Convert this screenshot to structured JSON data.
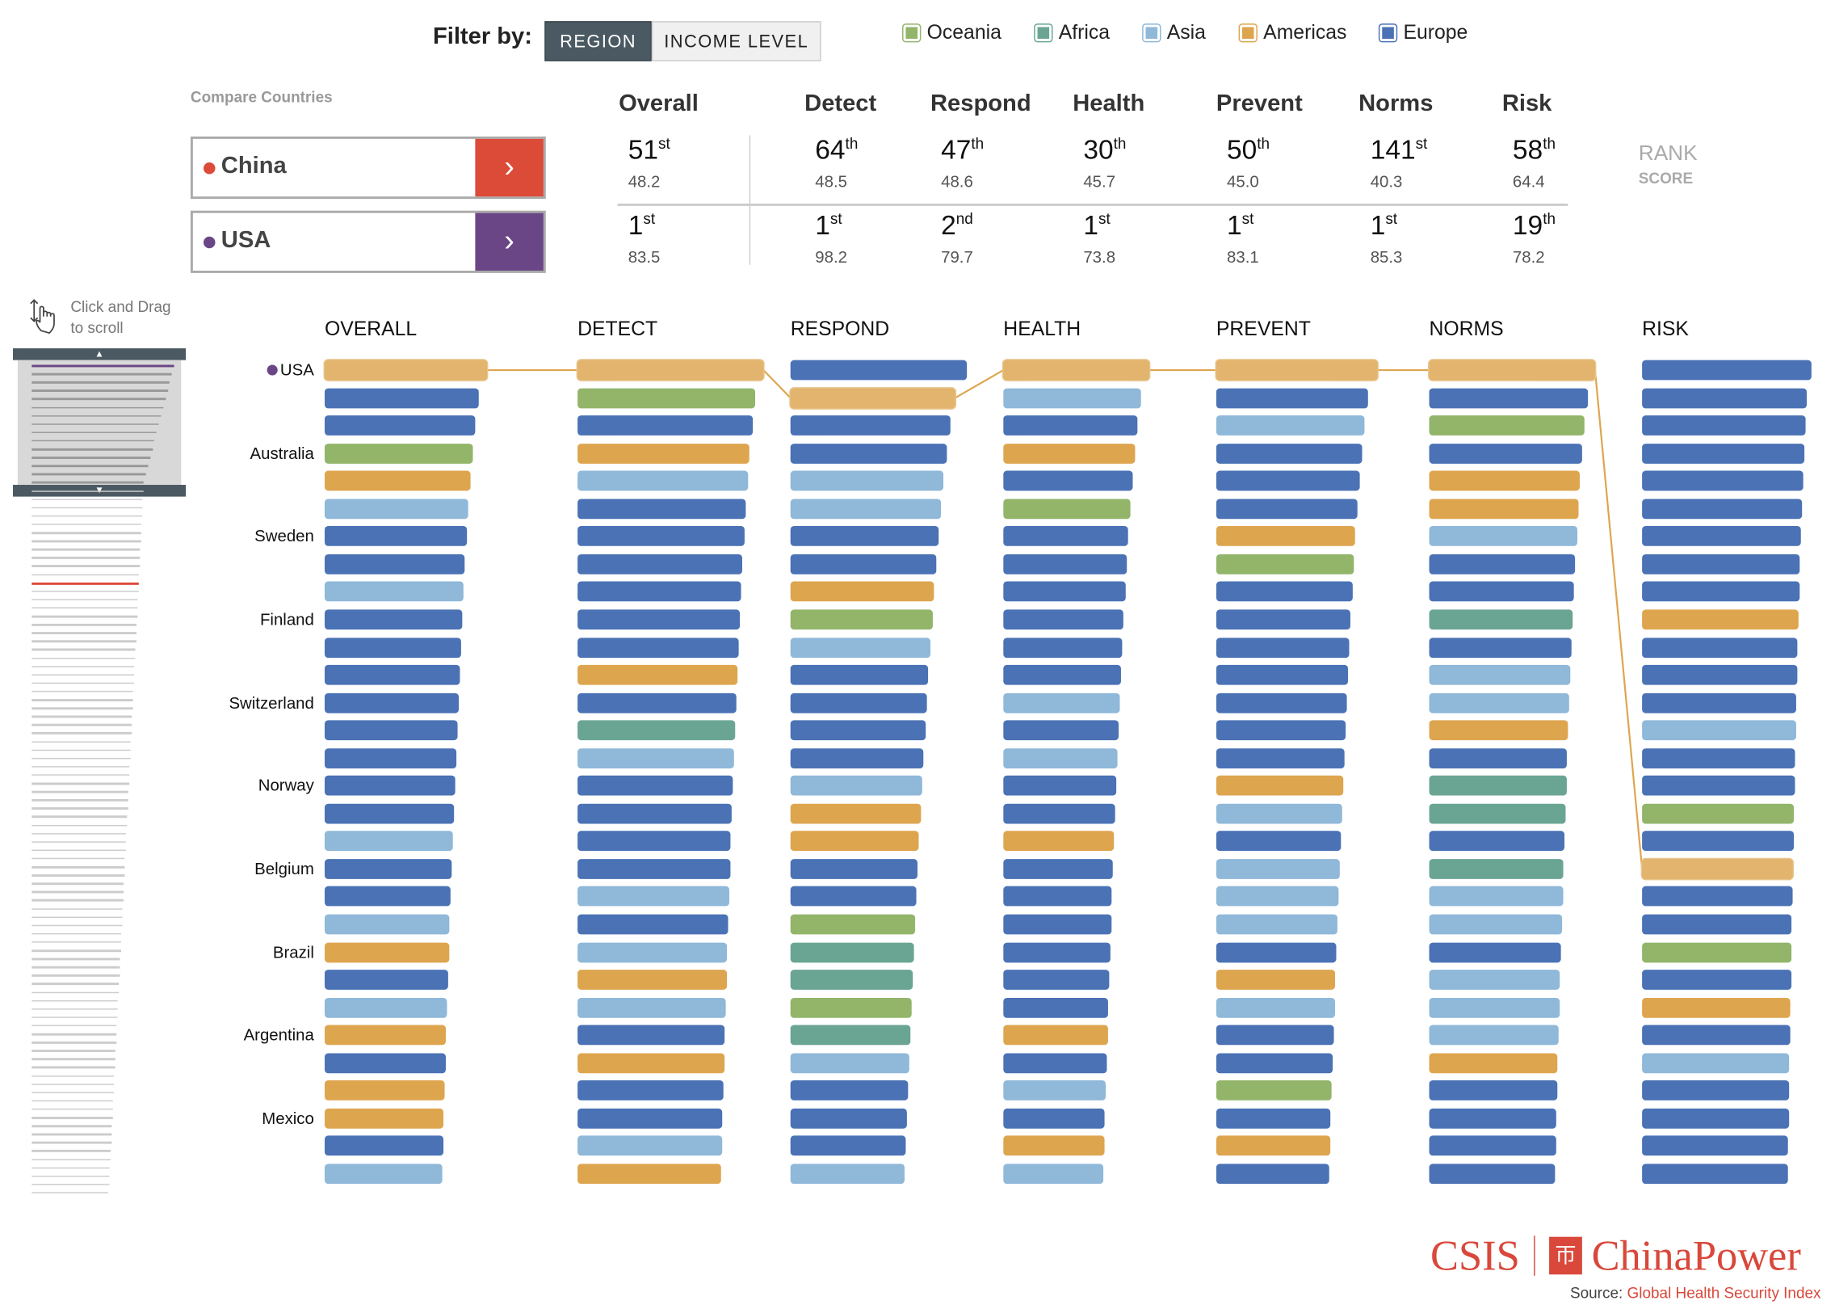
{
  "filter": {
    "label": "Filter by:",
    "options": [
      "REGION",
      "INCOME LEVEL"
    ],
    "selected": "REGION"
  },
  "legend": [
    {
      "name": "Oceania",
      "color": "#92b56a"
    },
    {
      "name": "Africa",
      "color": "#6aa594"
    },
    {
      "name": "Asia",
      "color": "#8fb8d9"
    },
    {
      "name": "Americas",
      "color": "#dea54f"
    },
    {
      "name": "Europe",
      "color": "#4a72b5"
    }
  ],
  "region_colors": {
    "O": "#92b56a",
    "F": "#6aa594",
    "S": "#8fb8d9",
    "A": "#dea54f",
    "E": "#4a72b5",
    "H": "#e2b46e"
  },
  "compare": {
    "title": "Compare Countries",
    "countries": [
      {
        "name": "China",
        "color": "#dc4a38",
        "arrow": "›",
        "ranks": [
          [
            "51",
            "st"
          ],
          [
            "64",
            "th"
          ],
          [
            "47",
            "th"
          ],
          [
            "30",
            "th"
          ],
          [
            "50",
            "th"
          ],
          [
            "141",
            "st"
          ],
          [
            "58",
            "th"
          ]
        ],
        "scores": [
          "48.2",
          "48.5",
          "48.6",
          "45.7",
          "45.0",
          "40.3",
          "64.4"
        ]
      },
      {
        "name": "USA",
        "color": "#6b4687",
        "arrow": "›",
        "ranks": [
          [
            "1",
            "st"
          ],
          [
            "1",
            "st"
          ],
          [
            "2",
            "nd"
          ],
          [
            "1",
            "st"
          ],
          [
            "1",
            "st"
          ],
          [
            "1",
            "st"
          ],
          [
            "19",
            "th"
          ]
        ],
        "scores": [
          "83.5",
          "98.2",
          "79.7",
          "73.8",
          "83.1",
          "85.3",
          "78.2"
        ]
      }
    ],
    "headers": [
      "Overall",
      "Detect",
      "Respond",
      "Health",
      "Prevent",
      "Norms",
      "Risk"
    ],
    "rank_label": "RANK",
    "score_label": "SCORE"
  },
  "scroll_hint": [
    "Click and Drag",
    "to scroll"
  ],
  "chart": {
    "columns": [
      "OVERALL",
      "DETECT",
      "RESPOND",
      "HEALTH",
      "PREVENT",
      "NORMS",
      "RISK"
    ],
    "row_labels": {
      "0": "USA",
      "3": "Australia",
      "6": "Sweden",
      "9": "Finland",
      "12": "Switzerland",
      "15": "Norway",
      "18": "Belgium",
      "21": "Brazil",
      "24": "Argentina",
      "27": "Mexico"
    },
    "highlight_country": "USA",
    "highlight_color": "#6b4687",
    "usa_rows": [
      0,
      0,
      1,
      0,
      0,
      0,
      18
    ],
    "regions": [
      "AEEOASEESEEEEEEEESEESAESAEAAES",
      "AOEASEEEEEEAEFSEEEESESASEAEESA",
      "EAEESSEEAOSEEEESAAEEOFFOFSEEES",
      "ASEAEOEEEEEESESEEAEEEEEEAESEAS",
      "AESEEEAOEEEEEEEASESSSEASEEOEAE",
      "AEOEAASEEFESSAEFFEFSSESSSAEEEE",
      "EEEEEEEEEAEEESEEOEAEEOEAESEEEE"
    ]
  },
  "footer": {
    "logo_left": "CSIS",
    "logo_right": "ChinaPower",
    "source_label": "Source:",
    "source_link": "Global Health Security Index"
  }
}
